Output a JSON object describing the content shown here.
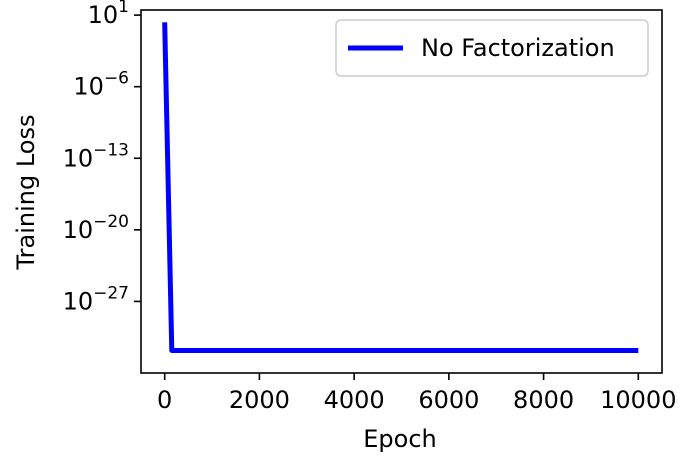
{
  "chart_data": {
    "type": "line",
    "title": "",
    "xlabel": "Epoch",
    "ylabel": "Training Loss",
    "yscale": "log",
    "xlim": [
      -500,
      10500
    ],
    "ylim_exponent": [
      -34,
      1.5
    ],
    "x_ticks": [
      0,
      2000,
      4000,
      6000,
      8000,
      10000
    ],
    "x_tick_labels": [
      "0",
      "2000",
      "4000",
      "6000",
      "8000",
      "10000"
    ],
    "y_ticks": [
      {
        "exp": 1,
        "base": "10",
        "sup": "1"
      },
      {
        "exp": -6,
        "base": "10",
        "sup": "−6"
      },
      {
        "exp": -13,
        "base": "10",
        "sup": "−13"
      },
      {
        "exp": -20,
        "base": "10",
        "sup": "−20"
      },
      {
        "exp": -27,
        "base": "10",
        "sup": "−27"
      }
    ],
    "grid": false,
    "legend_position": "top-right",
    "series": [
      {
        "name": "No Factorization",
        "color": "#0000ff",
        "x": [
          0,
          150,
          10000
        ],
        "y_exponent": [
          0.3,
          -31.8,
          -31.8
        ]
      }
    ]
  }
}
